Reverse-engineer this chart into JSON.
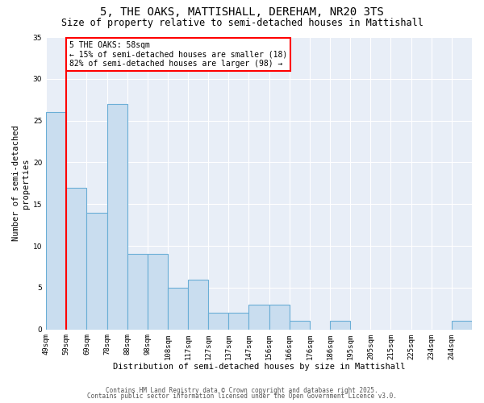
{
  "title1": "5, THE OAKS, MATTISHALL, DEREHAM, NR20 3TS",
  "title2": "Size of property relative to semi-detached houses in Mattishall",
  "xlabel": "Distribution of semi-detached houses by size in Mattishall",
  "ylabel": "Number of semi-detached\nproperties",
  "bin_labels": [
    "49sqm",
    "59sqm",
    "69sqm",
    "78sqm",
    "88sqm",
    "98sqm",
    "108sqm",
    "117sqm",
    "127sqm",
    "137sqm",
    "147sqm",
    "156sqm",
    "166sqm",
    "176sqm",
    "186sqm",
    "195sqm",
    "205sqm",
    "215sqm",
    "225sqm",
    "234sqm",
    "244sqm"
  ],
  "bar_values": [
    26,
    17,
    14,
    27,
    9,
    9,
    5,
    6,
    2,
    2,
    3,
    3,
    1,
    0,
    1,
    0,
    0,
    0,
    0,
    0,
    1
  ],
  "bar_color": "#c9ddef",
  "bar_edge_color": "#6aaed6",
  "property_size_bin": 1,
  "red_line_x": 1,
  "red_line_color": "#ff0000",
  "annotation_text": "5 THE OAKS: 58sqm\n← 15% of semi-detached houses are smaller (18)\n82% of semi-detached houses are larger (98) →",
  "annotation_box_color": "#ffffff",
  "annotation_box_edge_color": "#ff0000",
  "ylim": [
    0,
    35
  ],
  "yticks": [
    0,
    5,
    10,
    15,
    20,
    25,
    30,
    35
  ],
  "background_color": "#e8eef7",
  "grid_color": "#ffffff",
  "footer1": "Contains HM Land Registry data © Crown copyright and database right 2025.",
  "footer2": "Contains public sector information licensed under the Open Government Licence v3.0.",
  "title_fontsize": 10,
  "subtitle_fontsize": 8.5,
  "axis_label_fontsize": 7.5,
  "tick_fontsize": 6.5,
  "annotation_fontsize": 7,
  "footer_fontsize": 5.5
}
